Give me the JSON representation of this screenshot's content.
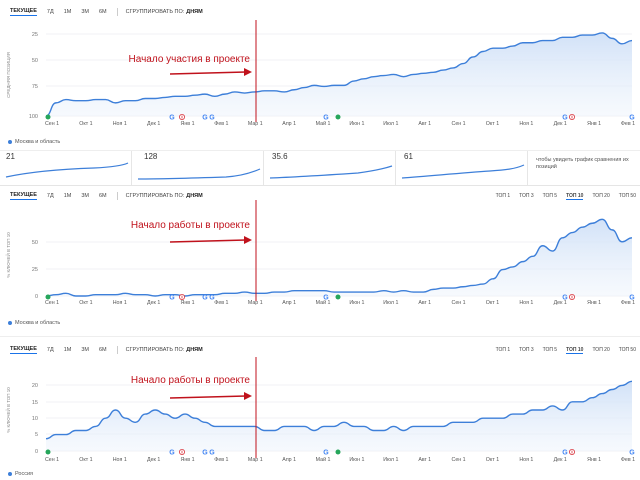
{
  "toolbar": {
    "current": "ТЕКУЩЕЕ",
    "d7": "7Д",
    "m1": "1М",
    "m3": "3М",
    "m6": "6М",
    "group_label": "СГРУППИРОВАТЬ ПО:",
    "group_value": "ДНЯМ"
  },
  "top_tabs": [
    "ТОП 1",
    "ТОП 3",
    "ТОП 5",
    "ТОП 10",
    "ТОП 20",
    "ТОП 50"
  ],
  "top_tabs_active": "ТОП 10",
  "months": [
    "Сен 1",
    "Окт 1",
    "Ноя 1",
    "Дек 1",
    "Янв 1",
    "Фев 1",
    "Мар 1",
    "Апр 1",
    "Май 1",
    "Июн 1",
    "Июл 1",
    "Авг 1",
    "Сен 1",
    "Окт 1",
    "Ноя 1",
    "Дек 1",
    "Янв 1",
    "Фев 1"
  ],
  "panels": [
    {
      "annotation": "Начало участия в проекте",
      "ylabel": "СРЕДНЯЯ ПОЗИЦИЯ",
      "yticks": [
        "25",
        "50",
        "75",
        "100"
      ],
      "region": "Москва и область",
      "chart_data": {
        "type": "area",
        "ylabel": "СРЕДНЯЯ ПОЗИЦИЯ",
        "y_axis": "inverted",
        "ylim": [
          100,
          25
        ],
        "start_marker": "Мар 1",
        "values": [
          100,
          88,
          85,
          86,
          86,
          85,
          85,
          88,
          86,
          86,
          84,
          84,
          83,
          82,
          82,
          81,
          80,
          82,
          80,
          78,
          79,
          78,
          77,
          77,
          78,
          76,
          74,
          72,
          73,
          72,
          72,
          68,
          66,
          64,
          63,
          62,
          64,
          62,
          61,
          60,
          58,
          56,
          52,
          46,
          41,
          38,
          38,
          36,
          33,
          33,
          31,
          31,
          28,
          28,
          26,
          26,
          24,
          29,
          34,
          31
        ]
      }
    },
    {
      "annotation": "Начало работы в проекте",
      "ylabel": "% КЛЮЧЕЙ В ТОП 10",
      "yticks": [
        "0",
        "25",
        "50"
      ],
      "region": "Москва и область",
      "chart_data": {
        "type": "area",
        "ylabel": "% КЛЮЧЕЙ В ТОП 10",
        "ylim": [
          0,
          62
        ],
        "start_marker": "Мар 1",
        "values": [
          0,
          1,
          2,
          0,
          0,
          1,
          1,
          1,
          2,
          1,
          1,
          0,
          1,
          1,
          0,
          1,
          1,
          1,
          2,
          2,
          3,
          2,
          2,
          3,
          3,
          4,
          4,
          4,
          4,
          3,
          3,
          3,
          3,
          3,
          4,
          3,
          4,
          3,
          3,
          5,
          6,
          6,
          7,
          8,
          9,
          13,
          20,
          22,
          26,
          30,
          38,
          34,
          44,
          48,
          52,
          55,
          58,
          50,
          41,
          44
        ]
      }
    },
    {
      "annotation": "Начало работы в проекте",
      "ylabel": "% КЛЮЧЕЙ В ТОП 10",
      "yticks": [
        "0",
        "5",
        "10",
        "15",
        "20"
      ],
      "region": "Россия",
      "chart_data": {
        "type": "area",
        "ylabel": "% КЛЮЧЕЙ В ТОП 10",
        "ylim": [
          0,
          20
        ],
        "start_marker": "Мар 1",
        "values": [
          3,
          4,
          4,
          5,
          5,
          6,
          8,
          10,
          8,
          7,
          9,
          10,
          9,
          8,
          9,
          8,
          7,
          6,
          6,
          6,
          6,
          6,
          5,
          5,
          6,
          6,
          6,
          5,
          6,
          6,
          7,
          6,
          6,
          5,
          5,
          6,
          5,
          6,
          6,
          6,
          6,
          7,
          7,
          7,
          8,
          8,
          8,
          9,
          9,
          10,
          10,
          11,
          10,
          12,
          12,
          13,
          14,
          15,
          16,
          17
        ]
      }
    }
  ],
  "mini_row": {
    "values": [
      "21",
      "128",
      "35.6",
      "61"
    ],
    "hint": "чтобы увидеть график сравнения их позиций"
  }
}
